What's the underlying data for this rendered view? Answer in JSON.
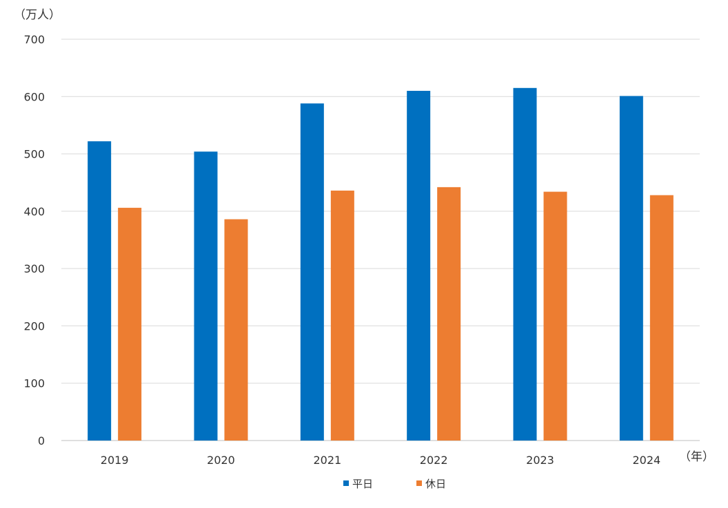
{
  "chart_data": {
    "type": "bar",
    "categories": [
      "2019",
      "2020",
      "2021",
      "2022",
      "2023",
      "2024"
    ],
    "series": [
      {
        "name": "平日",
        "values": [
          522,
          504,
          588,
          610,
          615,
          601
        ],
        "color": "#0070C0"
      },
      {
        "name": "休日",
        "values": [
          406,
          386,
          436,
          442,
          434,
          428
        ],
        "color": "#ED7D31"
      }
    ],
    "ylabel": "（万人）",
    "xlabel": "（年）",
    "ylim": [
      0,
      700
    ],
    "yticks": [
      0,
      100,
      200,
      300,
      400,
      500,
      600,
      700
    ],
    "grid": true,
    "legend_position": "bottom-center"
  }
}
